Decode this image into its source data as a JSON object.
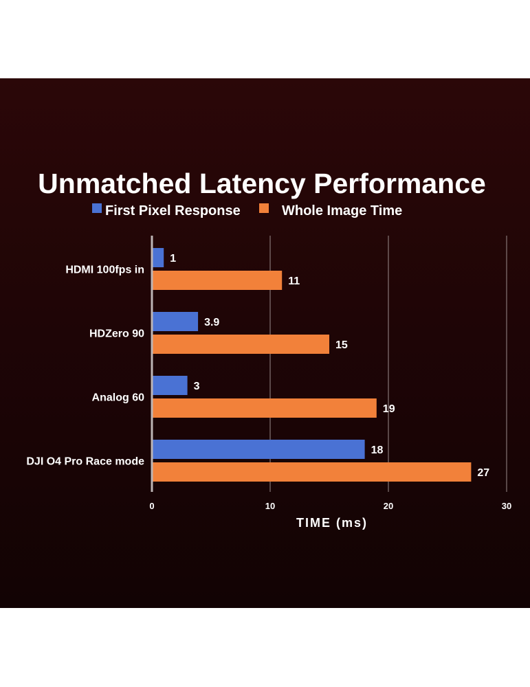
{
  "chart_data": {
    "type": "bar",
    "orientation": "horizontal",
    "title": "Unmatched Latency Performance",
    "xlabel": "TIME (ms)",
    "ylabel": "",
    "categories": [
      "HDMI 100fps in",
      "HDZero 90",
      "Analog 60",
      "DJI O4 Pro Race mode"
    ],
    "series": [
      {
        "name": "First Pixel Response",
        "color": "#4a72d4",
        "values": [
          1,
          3.9,
          3,
          18
        ],
        "labels": [
          "1",
          "3.9",
          "3",
          "18"
        ]
      },
      {
        "name": "Whole Image Time",
        "color": "#f2813a",
        "values": [
          11,
          15,
          19,
          27
        ],
        "labels": [
          "11",
          "15",
          "19",
          "27"
        ]
      }
    ],
    "xlim": [
      0,
      30
    ],
    "xticks": [
      "0",
      "10",
      "20",
      "30"
    ],
    "grid": true,
    "legend_position": "top"
  }
}
